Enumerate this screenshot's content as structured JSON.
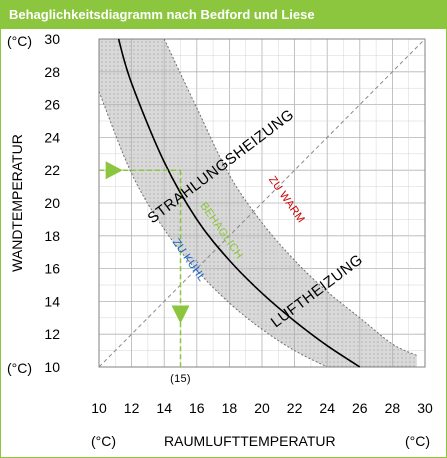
{
  "title": "Behaglichkeitsdiagramm nach Bedford und Liese",
  "colors": {
    "accent": "#8cc63f",
    "band": "#d9d9d9",
    "grid": "#b3b3b3",
    "too_warm": "#cc0000",
    "comfortable": "#8cc63f",
    "too_cool": "#1a66cc"
  },
  "chart_data": {
    "type": "line",
    "title": "Behaglichkeitsdiagramm nach Bedford und Liese",
    "xlabel": "RAUMLUFTTEMPERATUR",
    "ylabel": "WANDTEMPERATUR",
    "x_unit_left": "(°C)",
    "x_unit_right": "(°C)",
    "y_unit_top": "(°C)",
    "y_unit_bottom": "(°C)",
    "xlim": [
      10,
      30
    ],
    "ylim": [
      10,
      30
    ],
    "x_ticks": [
      "10",
      "12",
      "14",
      "16",
      "18",
      "20",
      "22",
      "24",
      "26",
      "28",
      "30"
    ],
    "y_ticks": [
      "10",
      "12",
      "14",
      "16",
      "18",
      "20",
      "22",
      "24",
      "26",
      "28",
      "30"
    ],
    "grid": true,
    "series": [
      {
        "role": "lower-bound",
        "x": [
          10.0,
          12.0,
          14.0,
          16.0,
          18.0,
          20.0,
          22.0,
          24.0
        ],
        "y": [
          26.8,
          21.8,
          18.4,
          15.9,
          13.9,
          12.3,
          11.0,
          10.0
        ]
      },
      {
        "role": "center",
        "x": [
          11.2,
          12.0,
          14.0,
          16.0,
          18.0,
          20.0,
          22.0,
          24.0,
          26.0
        ],
        "y": [
          30.0,
          27.3,
          22.5,
          19.0,
          16.5,
          14.5,
          12.8,
          11.3,
          10.0
        ]
      },
      {
        "role": "upper-bound",
        "x": [
          14.0,
          16.0,
          18.0,
          20.0,
          22.0,
          24.0,
          26.0,
          28.0,
          29.5
        ],
        "y": [
          30.0,
          25.8,
          21.7,
          18.8,
          16.5,
          14.6,
          13.0,
          11.4,
          10.7
        ]
      },
      {
        "role": "diagonal",
        "x": [
          10,
          30
        ],
        "y": [
          10,
          30
        ]
      }
    ],
    "example": {
      "x": 15,
      "y": 22,
      "x_label": "(15)"
    },
    "annotations": [
      {
        "text": "STRAHLUNGSHEIZUNG",
        "x": 17.5,
        "y": 22.2
      },
      {
        "text": "LUFTHEIZUNG",
        "x": 23.4,
        "y": 14.6
      },
      {
        "text": "ZU WARM",
        "x": 21.5,
        "y": 20.2
      },
      {
        "text": "BEHAGLICH",
        "x": 17.5,
        "y": 18.3
      },
      {
        "text": "ZU KÜHL",
        "x": 15.5,
        "y": 16.5
      }
    ]
  }
}
